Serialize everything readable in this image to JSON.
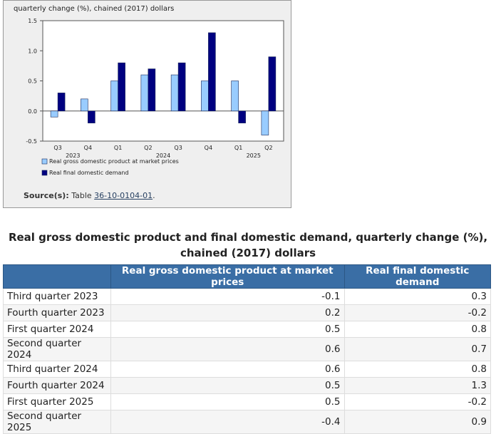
{
  "chart_data": {
    "type": "bar",
    "ylabel": "quarterly change (%), chained (2017) dollars",
    "ylim": [
      -0.5,
      1.5
    ],
    "yticks": [
      "1.5",
      "1.0",
      "0.5",
      "0.0",
      "-0.5"
    ],
    "categories": [
      "Q3",
      "Q4",
      "Q1",
      "Q2",
      "Q3",
      "Q4",
      "Q1",
      "Q2"
    ],
    "year_groups": [
      {
        "label": "2023",
        "start": 0,
        "end": 1
      },
      {
        "label": "2024",
        "start": 2,
        "end": 5
      },
      {
        "label": "2025",
        "start": 6,
        "end": 7
      }
    ],
    "series": [
      {
        "name": "Real gross domestic product at market prices",
        "color": "#99ccff",
        "values": [
          -0.1,
          0.2,
          0.5,
          0.6,
          0.6,
          0.5,
          0.5,
          -0.4
        ]
      },
      {
        "name": "Real final domestic demand",
        "color": "#000080",
        "values": [
          0.3,
          -0.2,
          0.8,
          0.7,
          0.8,
          1.3,
          -0.2,
          0.9
        ]
      }
    ],
    "legend_position": "bottom-left",
    "grid": false
  },
  "source": {
    "label": "Source(s):",
    "text": "Table",
    "link": "36-10-0104-01",
    "suffix": "."
  },
  "table": {
    "title": "Real gross domestic product and final domestic demand, quarterly change (%), chained (2017) dollars",
    "headers": [
      "",
      "Real gross domestic product at market prices",
      "Real final domestic demand"
    ],
    "rows": [
      {
        "label": "Third quarter 2023",
        "gdp": "-0.1",
        "fdd": "0.3"
      },
      {
        "label": "Fourth quarter 2023",
        "gdp": "0.2",
        "fdd": "-0.2"
      },
      {
        "label": "First quarter 2024",
        "gdp": "0.5",
        "fdd": "0.8"
      },
      {
        "label": "Second quarter 2024",
        "gdp": "0.6",
        "fdd": "0.7"
      },
      {
        "label": "Third quarter 2024",
        "gdp": "0.6",
        "fdd": "0.8"
      },
      {
        "label": "Fourth quarter 2024",
        "gdp": "0.5",
        "fdd": "1.3"
      },
      {
        "label": "First quarter 2025",
        "gdp": "0.5",
        "fdd": "-0.2"
      },
      {
        "label": "Second quarter 2025",
        "gdp": "-0.4",
        "fdd": "0.9"
      }
    ]
  }
}
